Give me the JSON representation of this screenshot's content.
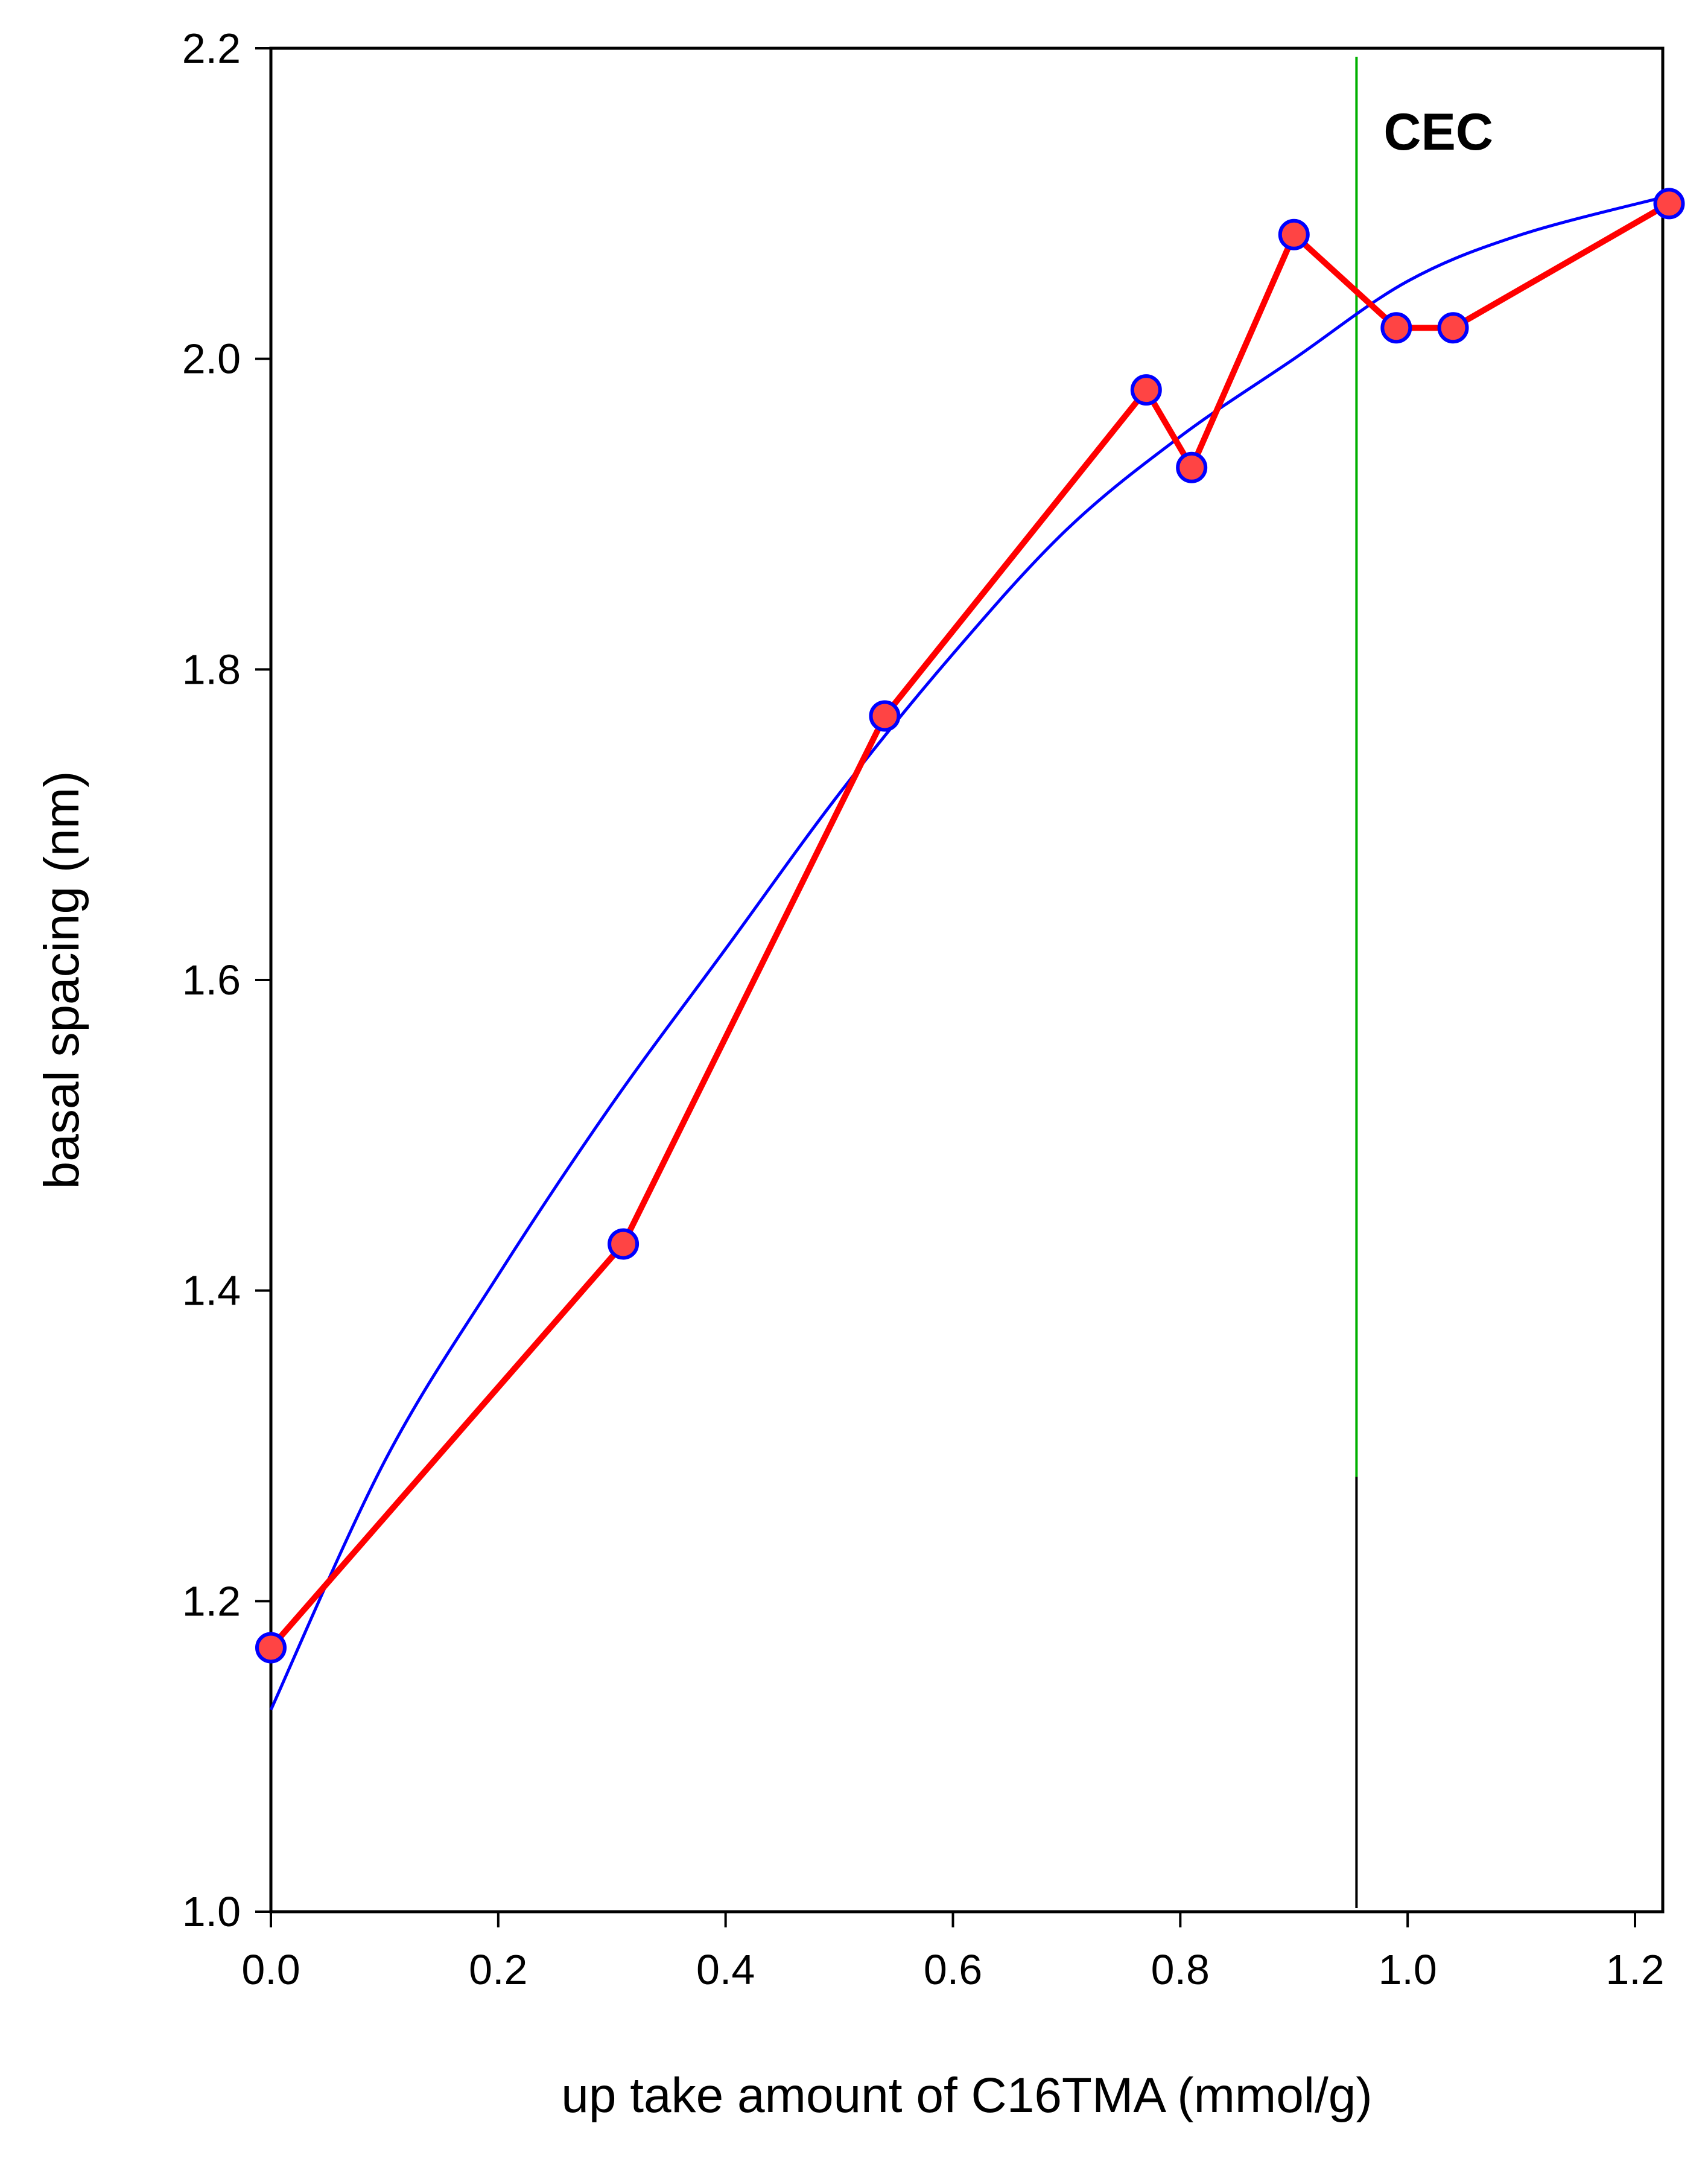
{
  "chart_data": {
    "type": "line",
    "title": "",
    "xlabel": "up take amount of C16TMA (mmol/g)",
    "ylabel": "basal spacing (nm)",
    "xlim": [
      0.0,
      1.23
    ],
    "ylim": [
      1.0,
      2.2
    ],
    "x_ticks": [
      0.0,
      0.2,
      0.4,
      0.6,
      0.8,
      1.0,
      1.2
    ],
    "x_tick_labels": [
      "0.0",
      "0.2",
      "0.4",
      "0.6",
      "0.8",
      "1.0",
      "1.2"
    ],
    "y_ticks": [
      1.0,
      1.2,
      1.4,
      1.6,
      1.8,
      2.0,
      2.2
    ],
    "y_tick_labels": [
      "1.0",
      "1.2",
      "1.4",
      "1.6",
      "1.8",
      "2.0",
      "2.2"
    ],
    "grid": false,
    "legend": "none",
    "series": [
      {
        "kind": "data",
        "color": "#ff0000",
        "marker_fill": "#ff4444",
        "marker_edge": "#0000ff",
        "points": [
          {
            "x": 0.0,
            "y": 1.17
          },
          {
            "x": 0.31,
            "y": 1.43
          },
          {
            "x": 0.54,
            "y": 1.77
          },
          {
            "x": 0.77,
            "y": 1.98
          },
          {
            "x": 0.81,
            "y": 1.93
          },
          {
            "x": 0.9,
            "y": 2.08
          },
          {
            "x": 0.99,
            "y": 2.02
          },
          {
            "x": 1.04,
            "y": 2.02
          },
          {
            "x": 1.23,
            "y": 2.1
          }
        ]
      },
      {
        "kind": "fit",
        "color": "#0000ff",
        "points": [
          {
            "x": 0.0,
            "y": 1.13
          },
          {
            "x": 0.1,
            "y": 1.29
          },
          {
            "x": 0.2,
            "y": 1.41
          },
          {
            "x": 0.3,
            "y": 1.52
          },
          {
            "x": 0.4,
            "y": 1.62
          },
          {
            "x": 0.5,
            "y": 1.72
          },
          {
            "x": 0.6,
            "y": 1.81
          },
          {
            "x": 0.7,
            "y": 1.89
          },
          {
            "x": 0.8,
            "y": 1.95
          },
          {
            "x": 0.9,
            "y": 2.0
          },
          {
            "x": 1.0,
            "y": 2.05
          },
          {
            "x": 1.1,
            "y": 2.08
          },
          {
            "x": 1.23,
            "y": 2.105
          }
        ]
      }
    ],
    "annotations": [
      {
        "label": "CEC",
        "x": 0.955,
        "color_upper": "#00b000",
        "color_lower": "#000000",
        "split_y": 1.28
      }
    ]
  }
}
